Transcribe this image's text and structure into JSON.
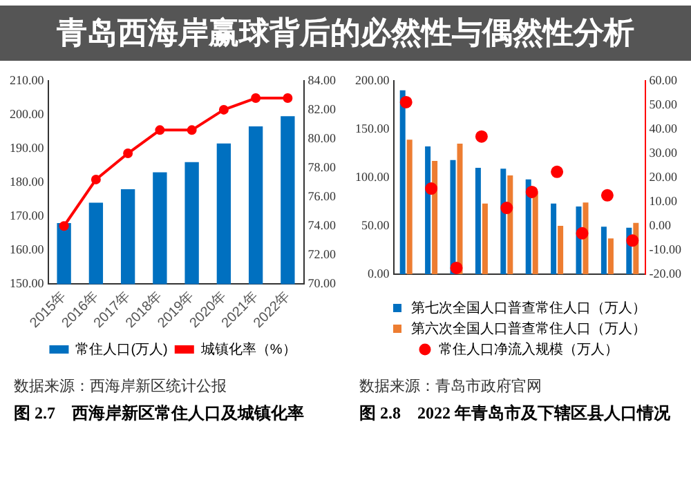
{
  "chart_data": [
    {
      "type": "bar",
      "title": "图 2.7　西海岸新区常住人口及城镇化率",
      "annotations": [
        "数据来源：西海岸新区统计公报"
      ],
      "categories": [
        "2015年",
        "2016年",
        "2017年",
        "2018年",
        "2019年",
        "2020年",
        "2021年",
        "2022年"
      ],
      "series": [
        {
          "name": "常住人口(万人)",
          "type": "bar",
          "color": "#0070c0",
          "values": [
            168,
            174,
            178,
            183,
            186,
            191.5,
            196.5,
            199.5
          ]
        },
        {
          "name": "城镇化率（%）",
          "type": "line",
          "axis": "y2",
          "color": "#ff0000",
          "values": [
            74.0,
            77.2,
            79.0,
            80.6,
            80.6,
            82.0,
            82.8,
            82.8
          ]
        }
      ],
      "ylim": [
        150,
        210
      ],
      "yticks": [
        {
          "value": 150,
          "label": "150.00"
        },
        {
          "value": 160,
          "label": "160.00"
        },
        {
          "value": 170,
          "label": "170.00"
        },
        {
          "value": 180,
          "label": "180.00"
        },
        {
          "value": 190,
          "label": "190.00"
        },
        {
          "value": 200,
          "label": "200.00"
        },
        {
          "value": 210,
          "label": "210.00"
        }
      ],
      "y2lim": [
        70,
        84
      ],
      "y2ticks": [
        {
          "value": 70,
          "label": "70.00"
        },
        {
          "value": 72,
          "label": "72.00"
        },
        {
          "value": 74,
          "label": "74.00"
        },
        {
          "value": 76,
          "label": "76.00"
        },
        {
          "value": 78,
          "label": "78.00"
        },
        {
          "value": 80,
          "label": "80.00"
        },
        {
          "value": 82,
          "label": "82.00"
        },
        {
          "value": 84,
          "label": "84.00"
        }
      ],
      "marker": "circle",
      "legend": "bottom"
    },
    {
      "type": "bar",
      "title": "图 2.8　2022 年青岛市及下辖区县人口情况",
      "annotations": [
        "数据来源：青岛市政府官网"
      ],
      "categories": [
        null,
        null,
        null,
        null,
        null,
        null,
        null,
        null,
        null,
        null
      ],
      "series": [
        {
          "name": "第七次全国人口普查常住人口（万人）",
          "type": "bar",
          "color": "#0070c0",
          "values": [
            190,
            132,
            118,
            110,
            109,
            98,
            73,
            70,
            49,
            48
          ]
        },
        {
          "name": "第六次全国人口普查常住人口（万人）",
          "type": "bar",
          "color": "#ed7d31",
          "values": [
            139,
            117,
            135,
            73,
            102,
            84,
            50,
            74,
            37,
            53
          ]
        },
        {
          "name": "常住人口净流入规模（万人）",
          "type": "scatter",
          "axis": "y2",
          "color": "#ff0000",
          "values": [
            51.1,
            15.4,
            -17.4,
            36.9,
            7.4,
            14.0,
            22.3,
            -3.1,
            12.6,
            -6.1
          ]
        }
      ],
      "ylim": [
        0,
        200
      ],
      "yticks": [
        {
          "value": 0,
          "label": "0.00"
        },
        {
          "value": 50,
          "label": "50.00"
        },
        {
          "value": 100,
          "label": "100.00"
        },
        {
          "value": 150,
          "label": "150.00"
        },
        {
          "value": 200,
          "label": "200.00"
        }
      ],
      "y2lim": [
        -20,
        60
      ],
      "y2ticks": [
        {
          "value": -20,
          "label": "-20.00"
        },
        {
          "value": -10,
          "label": "-10.00"
        },
        {
          "value": 0,
          "label": "0.00"
        },
        {
          "value": 10,
          "label": "10.00"
        },
        {
          "value": 20,
          "label": "20.00"
        },
        {
          "value": 30,
          "label": "30.00"
        },
        {
          "value": 40,
          "label": "40.00"
        },
        {
          "value": 50,
          "label": "50.00"
        },
        {
          "value": 60,
          "label": "60.00"
        }
      ],
      "marker": "circle",
      "legend": "bottom"
    },
    {
      "type": "other",
      "title": "青岛西海岸赢球背后的必然性与偶然性分析"
    }
  ]
}
